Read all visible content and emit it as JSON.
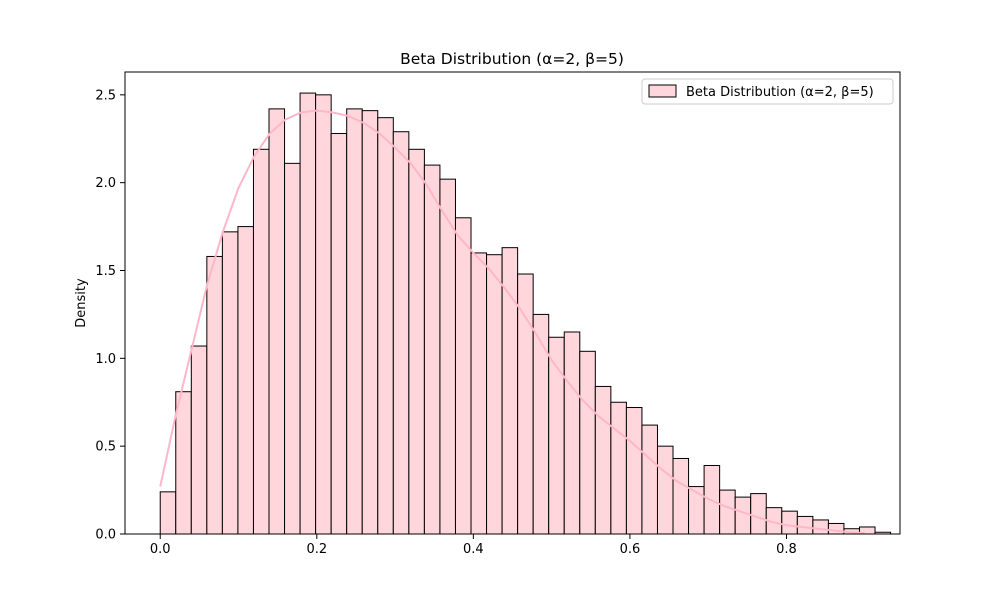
{
  "chart_data": {
    "type": "bar",
    "title": "Beta Distribution (α=2, β=5)",
    "xlabel": "",
    "ylabel": "Density",
    "xlim": [
      -0.045,
      0.945
    ],
    "ylim": [
      0,
      2.63
    ],
    "xticks": [
      0.0,
      0.2,
      0.4,
      0.6,
      0.8
    ],
    "xtick_labels": [
      "0.0",
      "0.2",
      "0.4",
      "0.6",
      "0.8"
    ],
    "yticks": [
      0.0,
      0.5,
      1.0,
      1.5,
      2.0,
      2.5
    ],
    "ytick_labels": [
      "0.0",
      "0.5",
      "1.0",
      "1.5",
      "2.0",
      "2.5"
    ],
    "grid": false,
    "legend": {
      "placement": "top-right",
      "entries": [
        "Beta Distribution (α=2, β=5)"
      ]
    },
    "bins": {
      "start": 0.0,
      "width": 0.01985,
      "values": [
        0.24,
        0.81,
        1.07,
        1.58,
        1.72,
        1.75,
        2.19,
        2.42,
        2.11,
        2.51,
        2.5,
        2.28,
        2.42,
        2.41,
        2.37,
        2.29,
        2.19,
        2.1,
        2.02,
        1.8,
        1.6,
        1.59,
        1.63,
        1.48,
        1.25,
        1.12,
        1.15,
        1.04,
        0.84,
        0.75,
        0.72,
        0.62,
        0.5,
        0.43,
        0.27,
        0.39,
        0.25,
        0.21,
        0.23,
        0.15,
        0.13,
        0.1,
        0.08,
        0.06,
        0.03,
        0.04,
        0.01
      ]
    },
    "kde": {
      "x": [
        0.0,
        0.02,
        0.04,
        0.06,
        0.08,
        0.1,
        0.12,
        0.14,
        0.16,
        0.18,
        0.2,
        0.22,
        0.24,
        0.26,
        0.28,
        0.3,
        0.32,
        0.34,
        0.36,
        0.38,
        0.4,
        0.42,
        0.44,
        0.46,
        0.48,
        0.5,
        0.52,
        0.54,
        0.56,
        0.58,
        0.6,
        0.62,
        0.64,
        0.66,
        0.68,
        0.7,
        0.72,
        0.74,
        0.76,
        0.78,
        0.8,
        0.82,
        0.84,
        0.86,
        0.88,
        0.9
      ],
      "y": [
        0.27,
        0.68,
        1.05,
        1.42,
        1.72,
        1.97,
        2.15,
        2.28,
        2.36,
        2.4,
        2.41,
        2.4,
        2.38,
        2.34,
        2.28,
        2.2,
        2.11,
        1.99,
        1.84,
        1.7,
        1.6,
        1.51,
        1.4,
        1.28,
        1.14,
        0.99,
        0.87,
        0.76,
        0.67,
        0.6,
        0.53,
        0.45,
        0.37,
        0.3,
        0.25,
        0.2,
        0.16,
        0.13,
        0.1,
        0.07,
        0.05,
        0.04,
        0.03,
        0.02,
        0.01,
        0.005
      ]
    },
    "colors": {
      "bar_fill": "#ffd6dc",
      "bar_edge": "#000000",
      "kde_line": "#ffb6c8"
    }
  }
}
